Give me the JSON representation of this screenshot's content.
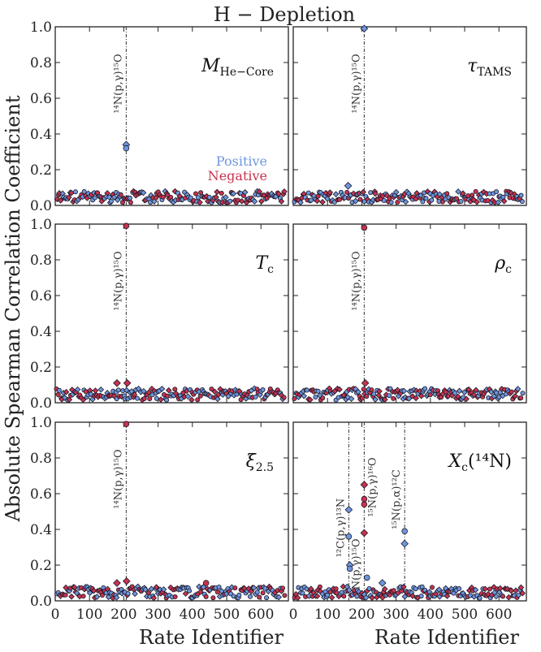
{
  "figure": {
    "title": "H − Depletion",
    "xlabel": "Rate Identifier",
    "ylabel": "Absolute Spearman Correlation Coefficient",
    "legend": {
      "positive": "Positive",
      "negative": "Negative",
      "placement": "lower-right of first panel"
    }
  },
  "colors": {
    "positive": "#6f96dd",
    "negative": "#c8324e",
    "edge": "#1a1a2a",
    "vline": "#333333"
  },
  "chart_data": [
    {
      "type": "scatter",
      "panel": "top-left",
      "title_main": "M",
      "title_sub": "He−Core",
      "xlim": [
        0,
        680
      ],
      "ylim": [
        0,
        1.0
      ],
      "xticks": [
        0,
        100,
        200,
        300,
        400,
        500,
        600
      ],
      "yticks": [
        "0.0",
        "0.2",
        "0.4",
        "0.6",
        "0.8",
        "1.0"
      ],
      "annotations": [
        {
          "x": 207,
          "label": "¹⁴N(p,γ)¹⁵O"
        }
      ],
      "highlight_points": [
        {
          "x": 207,
          "y": 0.34,
          "sign": "positive",
          "marker": "diamond"
        },
        {
          "x": 207,
          "y": 0.32,
          "sign": "positive",
          "marker": "circle"
        }
      ],
      "baseline_max": 0.08
    },
    {
      "type": "scatter",
      "panel": "top-right",
      "title_main": "τ",
      "title_sub": "TAMS",
      "xlim": [
        0,
        680
      ],
      "ylim": [
        0,
        1.0
      ],
      "xticks": [
        0,
        100,
        200,
        300,
        400,
        500,
        600
      ],
      "yticks": [],
      "annotations": [
        {
          "x": 207,
          "label": "¹⁴N(p,γ)¹⁵O"
        }
      ],
      "highlight_points": [
        {
          "x": 207,
          "y": 0.99,
          "sign": "positive",
          "marker": "diamond"
        },
        {
          "x": 160,
          "y": 0.11,
          "sign": "positive",
          "marker": "diamond"
        }
      ],
      "baseline_max": 0.08
    },
    {
      "type": "scatter",
      "panel": "middle-left",
      "title_main": "T",
      "title_sub": "c",
      "xlim": [
        0,
        680
      ],
      "ylim": [
        0,
        1.0
      ],
      "xticks": [
        0,
        100,
        200,
        300,
        400,
        500,
        600
      ],
      "yticks": [
        "0.0",
        "0.2",
        "0.4",
        "0.6",
        "0.8",
        "1.0"
      ],
      "annotations": [
        {
          "x": 207,
          "label": "¹⁴N(p,γ)¹⁵O"
        }
      ],
      "highlight_points": [
        {
          "x": 207,
          "y": 0.99,
          "sign": "negative",
          "marker": "circle"
        },
        {
          "x": 180,
          "y": 0.11,
          "sign": "negative",
          "marker": "diamond"
        },
        {
          "x": 210,
          "y": 0.11,
          "sign": "negative",
          "marker": "diamond"
        }
      ],
      "baseline_max": 0.08
    },
    {
      "type": "scatter",
      "panel": "middle-right",
      "title_main": "ρ",
      "title_sub": "c",
      "xlim": [
        0,
        680
      ],
      "ylim": [
        0,
        1.0
      ],
      "xticks": [
        0,
        100,
        200,
        300,
        400,
        500,
        600
      ],
      "yticks": [],
      "annotations": [
        {
          "x": 207,
          "label": "¹⁴N(p,γ)¹⁵O"
        }
      ],
      "highlight_points": [
        {
          "x": 207,
          "y": 0.98,
          "sign": "negative",
          "marker": "circle"
        },
        {
          "x": 210,
          "y": 0.11,
          "sign": "negative",
          "marker": "diamond"
        }
      ],
      "baseline_max": 0.08
    },
    {
      "type": "scatter",
      "panel": "bottom-left",
      "title_main": "ξ",
      "title_sub": "2.5",
      "xlim": [
        0,
        680
      ],
      "ylim": [
        0,
        1.0
      ],
      "xticks": [
        0,
        100,
        200,
        300,
        400,
        500,
        600
      ],
      "yticks": [
        "0.0",
        "0.2",
        "0.4",
        "0.6",
        "0.8",
        "1.0"
      ],
      "annotations": [
        {
          "x": 207,
          "label": "¹⁴N(p,γ)¹⁵O"
        }
      ],
      "highlight_points": [
        {
          "x": 207,
          "y": 0.99,
          "sign": "negative",
          "marker": "circle"
        },
        {
          "x": 180,
          "y": 0.1,
          "sign": "negative",
          "marker": "diamond"
        },
        {
          "x": 208,
          "y": 0.11,
          "sign": "negative",
          "marker": "diamond"
        },
        {
          "x": 440,
          "y": 0.1,
          "sign": "negative",
          "marker": "circle"
        }
      ],
      "baseline_max": 0.08
    },
    {
      "type": "scatter",
      "panel": "bottom-right",
      "title_main": "X",
      "title_sub": "c",
      "title_suffix": "(¹⁴N)",
      "xlim": [
        0,
        680
      ],
      "ylim": [
        0,
        1.0
      ],
      "xticks": [
        0,
        100,
        200,
        300,
        400,
        500,
        600
      ],
      "yticks": [],
      "annotations": [
        {
          "x": 162,
          "label": "¹²C(p,γ)¹³N"
        },
        {
          "x": 207,
          "label": "¹⁴N(p,γ)¹⁵O"
        },
        {
          "x": 207,
          "label": "¹⁵N(p,γ)¹⁶O"
        },
        {
          "x": 325,
          "label": "¹⁵N(p,α)¹²C"
        }
      ],
      "highlight_points": [
        {
          "x": 162,
          "y": 0.51,
          "sign": "positive",
          "marker": "diamond"
        },
        {
          "x": 162,
          "y": 0.36,
          "sign": "positive",
          "marker": "circle"
        },
        {
          "x": 165,
          "y": 0.2,
          "sign": "positive",
          "marker": "diamond"
        },
        {
          "x": 165,
          "y": 0.18,
          "sign": "positive",
          "marker": "circle"
        },
        {
          "x": 207,
          "y": 0.65,
          "sign": "negative",
          "marker": "diamond"
        },
        {
          "x": 207,
          "y": 0.57,
          "sign": "negative",
          "marker": "circle"
        },
        {
          "x": 207,
          "y": 0.54,
          "sign": "negative",
          "marker": "circle"
        },
        {
          "x": 207,
          "y": 0.38,
          "sign": "negative",
          "marker": "diamond"
        },
        {
          "x": 215,
          "y": 0.13,
          "sign": "positive",
          "marker": "circle"
        },
        {
          "x": 325,
          "y": 0.39,
          "sign": "positive",
          "marker": "circle"
        },
        {
          "x": 325,
          "y": 0.32,
          "sign": "positive",
          "marker": "diamond"
        },
        {
          "x": 260,
          "y": 0.1,
          "sign": "positive",
          "marker": "diamond"
        }
      ],
      "baseline_max": 0.08
    }
  ]
}
